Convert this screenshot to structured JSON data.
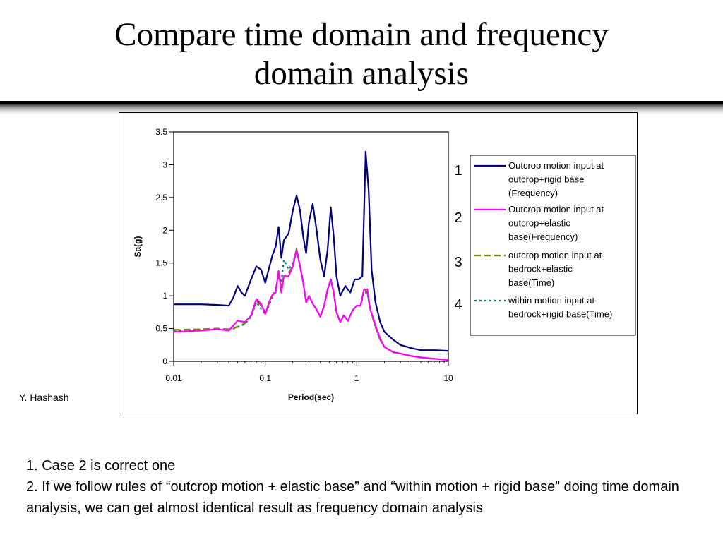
{
  "title_lines": [
    "Compare time domain and frequency",
    "domain analysis"
  ],
  "author": "Y. Hashash",
  "notes": [
    "1. Case 2 is correct one",
    "2. If we follow rules of “outcrop motion + elastic base” and “within motion + rigid base” doing time domain analysis, we can get almost identical result as frequency domain analysis"
  ],
  "case_numbers": [
    "1",
    "2",
    "3",
    "4"
  ],
  "chart_data": {
    "type": "line",
    "title": "",
    "xlabel": "Period(sec)",
    "ylabel": "Sa(g)",
    "xscale": "log",
    "xlim": [
      0.01,
      10
    ],
    "ylim": [
      0,
      3.5
    ],
    "x_ticks": [
      0.01,
      0.1,
      1,
      10
    ],
    "x_tick_labels": [
      "0.01",
      "0.1",
      "1",
      "10"
    ],
    "y_ticks": [
      0,
      0.5,
      1,
      1.5,
      2,
      2.5,
      3,
      3.5
    ],
    "y_tick_labels": [
      "0",
      "0.5",
      "1",
      "1.5",
      "2",
      "2.5",
      "3",
      "3.5"
    ],
    "grid": false,
    "legend_position": "right",
    "series": [
      {
        "name": "Outcrop motion input at outcrop+rigid base (Frequency)",
        "legend_lines": [
          "Outcrop motion input at",
          "outcrop+rigid base",
          "(Frequency)"
        ],
        "color": "#000080",
        "style": "solid",
        "points": [
          [
            0.01,
            0.87
          ],
          [
            0.02,
            0.87
          ],
          [
            0.03,
            0.86
          ],
          [
            0.04,
            0.85
          ],
          [
            0.045,
            0.98
          ],
          [
            0.05,
            1.15
          ],
          [
            0.055,
            1.05
          ],
          [
            0.06,
            1.0
          ],
          [
            0.07,
            1.25
          ],
          [
            0.08,
            1.45
          ],
          [
            0.09,
            1.4
          ],
          [
            0.1,
            1.2
          ],
          [
            0.11,
            1.42
          ],
          [
            0.12,
            1.62
          ],
          [
            0.13,
            1.75
          ],
          [
            0.14,
            2.05
          ],
          [
            0.15,
            1.58
          ],
          [
            0.16,
            1.85
          ],
          [
            0.18,
            1.95
          ],
          [
            0.2,
            2.3
          ],
          [
            0.22,
            2.53
          ],
          [
            0.24,
            2.3
          ],
          [
            0.26,
            1.9
          ],
          [
            0.28,
            1.65
          ],
          [
            0.3,
            2.12
          ],
          [
            0.33,
            2.4
          ],
          [
            0.36,
            2.05
          ],
          [
            0.4,
            1.55
          ],
          [
            0.44,
            1.3
          ],
          [
            0.48,
            1.7
          ],
          [
            0.52,
            2.35
          ],
          [
            0.56,
            1.9
          ],
          [
            0.6,
            1.3
          ],
          [
            0.66,
            1.0
          ],
          [
            0.75,
            1.15
          ],
          [
            0.85,
            1.05
          ],
          [
            0.95,
            1.25
          ],
          [
            1.05,
            1.25
          ],
          [
            1.15,
            1.3
          ],
          [
            1.25,
            3.2
          ],
          [
            1.35,
            2.6
          ],
          [
            1.45,
            1.4
          ],
          [
            1.6,
            0.9
          ],
          [
            1.8,
            0.6
          ],
          [
            2.0,
            0.45
          ],
          [
            2.5,
            0.33
          ],
          [
            3.0,
            0.25
          ],
          [
            4.0,
            0.2
          ],
          [
            5.0,
            0.17
          ],
          [
            7.0,
            0.17
          ],
          [
            10.0,
            0.16
          ]
        ]
      },
      {
        "name": "Outcrop motion input at outcrop+elastic base(Frequency)",
        "legend_lines": [
          "Outcrop motion input at",
          "outcrop+elastic",
          "base(Frequency)"
        ],
        "color": "#ff00ff",
        "style": "solid",
        "points": [
          [
            0.01,
            0.45
          ],
          [
            0.02,
            0.47
          ],
          [
            0.03,
            0.49
          ],
          [
            0.04,
            0.47
          ],
          [
            0.045,
            0.55
          ],
          [
            0.05,
            0.62
          ],
          [
            0.06,
            0.6
          ],
          [
            0.07,
            0.7
          ],
          [
            0.08,
            0.95
          ],
          [
            0.09,
            0.88
          ],
          [
            0.1,
            0.72
          ],
          [
            0.11,
            0.9
          ],
          [
            0.12,
            1.02
          ],
          [
            0.13,
            1.05
          ],
          [
            0.14,
            1.38
          ],
          [
            0.15,
            1.05
          ],
          [
            0.16,
            1.3
          ],
          [
            0.18,
            1.3
          ],
          [
            0.2,
            1.45
          ],
          [
            0.22,
            1.7
          ],
          [
            0.24,
            1.45
          ],
          [
            0.26,
            1.2
          ],
          [
            0.28,
            0.9
          ],
          [
            0.3,
            1.0
          ],
          [
            0.33,
            0.88
          ],
          [
            0.36,
            0.8
          ],
          [
            0.4,
            0.68
          ],
          [
            0.44,
            0.85
          ],
          [
            0.48,
            1.1
          ],
          [
            0.52,
            1.25
          ],
          [
            0.56,
            1.05
          ],
          [
            0.6,
            0.75
          ],
          [
            0.66,
            0.6
          ],
          [
            0.72,
            0.7
          ],
          [
            0.8,
            0.62
          ],
          [
            0.9,
            0.78
          ],
          [
            1.0,
            0.85
          ],
          [
            1.1,
            0.85
          ],
          [
            1.2,
            1.1
          ],
          [
            1.3,
            1.1
          ],
          [
            1.4,
            0.8
          ],
          [
            1.6,
            0.55
          ],
          [
            1.8,
            0.35
          ],
          [
            2.0,
            0.22
          ],
          [
            2.5,
            0.14
          ],
          [
            3.0,
            0.12
          ],
          [
            4.0,
            0.08
          ],
          [
            5.0,
            0.06
          ],
          [
            7.0,
            0.04
          ],
          [
            10.0,
            0.02
          ]
        ]
      },
      {
        "name": "outcrop motion input at bedrock+elastic base(Time)",
        "legend_lines": [
          "outcrop motion input at",
          "bedrock+elastic",
          "base(Time)"
        ],
        "color": "#808000",
        "style": "dashed",
        "points": [
          [
            0.01,
            0.48
          ],
          [
            0.02,
            0.49
          ],
          [
            0.03,
            0.5
          ],
          [
            0.04,
            0.49
          ],
          [
            0.045,
            0.5
          ],
          [
            0.05,
            0.53
          ],
          [
            0.06,
            0.58
          ],
          [
            0.07,
            0.7
          ],
          [
            0.08,
            0.93
          ],
          [
            0.09,
            0.85
          ],
          [
            0.1,
            0.75
          ],
          [
            0.11,
            0.88
          ],
          [
            0.12,
            1.0
          ],
          [
            0.13,
            1.1
          ],
          [
            0.14,
            1.3
          ],
          [
            0.15,
            1.15
          ],
          [
            0.16,
            1.3
          ],
          [
            0.18,
            1.35
          ],
          [
            0.2,
            1.45
          ],
          [
            0.22,
            1.72
          ],
          [
            0.24,
            1.45
          ],
          [
            0.26,
            1.2
          ],
          [
            0.28,
            0.9
          ],
          [
            0.3,
            1.0
          ],
          [
            0.33,
            0.88
          ],
          [
            0.36,
            0.8
          ],
          [
            0.4,
            0.68
          ],
          [
            0.44,
            0.85
          ],
          [
            0.48,
            1.1
          ],
          [
            0.52,
            1.25
          ],
          [
            0.56,
            1.05
          ],
          [
            0.6,
            0.75
          ],
          [
            0.66,
            0.6
          ],
          [
            0.72,
            0.7
          ],
          [
            0.8,
            0.62
          ],
          [
            0.9,
            0.78
          ],
          [
            1.0,
            0.85
          ],
          [
            1.1,
            0.85
          ],
          [
            1.2,
            1.1
          ],
          [
            1.3,
            1.05
          ],
          [
            1.4,
            0.8
          ],
          [
            1.6,
            0.52
          ],
          [
            1.8,
            0.33
          ],
          [
            2.0,
            0.22
          ],
          [
            2.5,
            0.14
          ],
          [
            3.0,
            0.12
          ],
          [
            4.0,
            0.08
          ],
          [
            5.0,
            0.06
          ],
          [
            7.0,
            0.04
          ],
          [
            10.0,
            0.02
          ]
        ]
      },
      {
        "name": "within motion input at bedrock+rigid base(Time)",
        "legend_lines": [
          "within motion input at",
          "bedrock+rigid base(Time)"
        ],
        "color": "#008080",
        "style": "dotted",
        "points": [
          [
            0.01,
            0.47
          ],
          [
            0.02,
            0.48
          ],
          [
            0.03,
            0.49
          ],
          [
            0.04,
            0.48
          ],
          [
            0.045,
            0.5
          ],
          [
            0.05,
            0.52
          ],
          [
            0.06,
            0.57
          ],
          [
            0.07,
            0.68
          ],
          [
            0.08,
            0.9
          ],
          [
            0.09,
            0.8
          ],
          [
            0.1,
            0.72
          ],
          [
            0.11,
            0.85
          ],
          [
            0.12,
            0.98
          ],
          [
            0.13,
            1.1
          ],
          [
            0.14,
            1.32
          ],
          [
            0.15,
            1.2
          ],
          [
            0.16,
            1.55
          ],
          [
            0.18,
            1.4
          ],
          [
            0.2,
            1.5
          ],
          [
            0.22,
            1.7
          ],
          [
            0.24,
            1.45
          ],
          [
            0.26,
            1.2
          ],
          [
            0.28,
            0.9
          ],
          [
            0.3,
            1.0
          ],
          [
            0.33,
            0.88
          ],
          [
            0.36,
            0.8
          ],
          [
            0.4,
            0.68
          ],
          [
            0.44,
            0.85
          ],
          [
            0.48,
            1.1
          ],
          [
            0.52,
            1.25
          ],
          [
            0.56,
            1.05
          ],
          [
            0.6,
            0.75
          ],
          [
            0.66,
            0.6
          ],
          [
            0.72,
            0.7
          ],
          [
            0.8,
            0.62
          ],
          [
            0.9,
            0.78
          ],
          [
            1.0,
            0.85
          ],
          [
            1.1,
            0.85
          ],
          [
            1.2,
            1.05
          ],
          [
            1.3,
            1.05
          ],
          [
            1.4,
            0.8
          ],
          [
            1.6,
            0.52
          ],
          [
            1.8,
            0.33
          ],
          [
            2.0,
            0.22
          ],
          [
            2.5,
            0.14
          ],
          [
            3.0,
            0.12
          ],
          [
            4.0,
            0.08
          ],
          [
            5.0,
            0.06
          ],
          [
            7.0,
            0.04
          ],
          [
            10.0,
            0.02
          ]
        ]
      }
    ]
  }
}
